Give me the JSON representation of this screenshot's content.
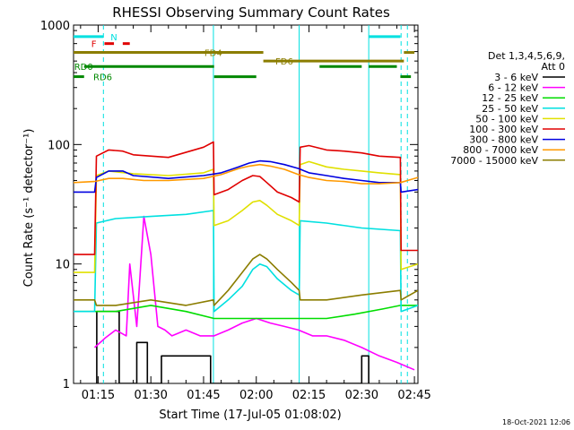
{
  "chart_data": {
    "type": "line",
    "title": "RHESSI Observing Summary Count Rates",
    "xlabel": "Start Time (17-Jul-05 01:08:02)",
    "ylabel": "Count Rate (s⁻¹ detector⁻¹)",
    "ylog": true,
    "ylim": [
      1,
      1000
    ],
    "xlim_min": [
      68,
      166
    ],
    "x_ticks": [
      {
        "min": 75,
        "label": "01:15"
      },
      {
        "min": 90,
        "label": "01:30"
      },
      {
        "min": 105,
        "label": "01:45"
      },
      {
        "min": 120,
        "label": "02:00"
      },
      {
        "min": 135,
        "label": "02:15"
      },
      {
        "min": 150,
        "label": "02:30"
      },
      {
        "min": 165,
        "label": "02:45"
      }
    ],
    "y_ticks": [
      {
        "value": 1,
        "label": "1"
      },
      {
        "value": 10,
        "label": "10"
      },
      {
        "value": 100,
        "label": "100"
      },
      {
        "value": 1000,
        "label": "1000"
      }
    ],
    "legend": {
      "placement": "right",
      "header": [
        "Det 1,3,4,5,6,9,",
        "Att 0"
      ]
    },
    "series": [
      {
        "name": "3 - 6 keV",
        "color": "#000000",
        "x": [
          74.6,
          74.6,
          81,
          81,
          86,
          86,
          89,
          89,
          93,
          93,
          107,
          107,
          150,
          150,
          152,
          152
        ],
        "y": [
          1,
          4,
          4,
          1,
          1,
          2.2,
          2.2,
          1,
          1,
          1.7,
          1.7,
          1,
          1,
          1.7,
          1.7,
          1
        ]
      },
      {
        "name": "6 - 12 keV",
        "color": "#ff00ff",
        "x": [
          74,
          77,
          80,
          83,
          84,
          86,
          88,
          90,
          92,
          94,
          96,
          100,
          104,
          108,
          112,
          116,
          120,
          124,
          128,
          132,
          136,
          140,
          145,
          150,
          155,
          160,
          165
        ],
        "y": [
          2,
          2.4,
          2.8,
          2.5,
          10,
          3,
          25,
          12,
          3,
          2.8,
          2.5,
          2.8,
          2.5,
          2.5,
          2.8,
          3.2,
          3.5,
          3.2,
          3,
          2.8,
          2.5,
          2.5,
          2.3,
          2,
          1.7,
          1.5,
          1.3
        ]
      },
      {
        "name": "12 - 25 keV",
        "color": "#00dd00",
        "x": [
          68,
          74,
          80,
          90,
          100,
          108,
          112,
          116,
          120,
          124,
          128,
          134,
          140,
          148,
          156,
          161,
          166
        ],
        "y": [
          4,
          4,
          4,
          4.5,
          4,
          3.5,
          3.5,
          3.5,
          3.5,
          3.5,
          3.5,
          3.5,
          3.5,
          3.8,
          4.2,
          4.5,
          4.5
        ]
      },
      {
        "name": "25 - 50 keV",
        "color": "#00e0e0",
        "x": [
          68,
          74,
          74.5,
          80,
          90,
          100,
          107.8,
          108,
          112,
          116,
          119,
          121,
          123,
          126,
          130,
          132.2,
          132.5,
          140,
          150,
          161,
          161.2,
          166
        ],
        "y": [
          4,
          4,
          22,
          24,
          25,
          26,
          28,
          4,
          5,
          6.5,
          9,
          10,
          9.5,
          7.5,
          6,
          5.5,
          23,
          22,
          20,
          19,
          4,
          4.5
        ]
      },
      {
        "name": "50 - 100 keV",
        "color": "#e0e000",
        "x": [
          68,
          74,
          74.5,
          78,
          85,
          95,
          105,
          107.8,
          108,
          112,
          116,
          119,
          121,
          123,
          126,
          130,
          132.2,
          132.5,
          135,
          140,
          145,
          150,
          155,
          161,
          161.2,
          166
        ],
        "y": [
          8.5,
          8.5,
          55,
          60,
          57,
          55,
          58,
          62,
          21,
          23,
          28,
          33,
          34,
          31,
          26,
          23,
          21,
          68,
          72,
          65,
          62,
          60,
          58,
          56,
          9,
          10
        ]
      },
      {
        "name": "100 - 300 keV",
        "color": "#e00000",
        "x": [
          68,
          74,
          74.5,
          78,
          82,
          85,
          95,
          105,
          107.8,
          108,
          112,
          116,
          119,
          121,
          123,
          126,
          130,
          132.2,
          132.5,
          135,
          140,
          145,
          150,
          155,
          161,
          161.2,
          166
        ],
        "y": [
          12,
          12,
          80,
          90,
          88,
          82,
          78,
          95,
          105,
          38,
          42,
          50,
          55,
          54,
          48,
          40,
          36,
          33,
          95,
          98,
          90,
          88,
          85,
          80,
          78,
          13,
          13
        ]
      },
      {
        "name": "300 - 800 keV",
        "color": "#0000e0",
        "x": [
          68,
          74,
          74.5,
          78,
          82,
          85,
          95,
          105,
          110,
          115,
          118,
          121,
          124,
          128,
          132,
          135,
          140,
          145,
          150,
          155,
          161,
          161.2,
          166
        ],
        "y": [
          40,
          40,
          53,
          60,
          60,
          55,
          52,
          55,
          58,
          65,
          70,
          73,
          72,
          68,
          63,
          58,
          55,
          52,
          50,
          48,
          48,
          40,
          42
        ]
      },
      {
        "name": "800 - 7000 keV",
        "color": "#ff9900",
        "x": [
          68,
          74,
          78,
          82,
          88,
          95,
          105,
          110,
          115,
          118,
          121,
          124,
          128,
          132,
          135,
          140,
          145,
          150,
          155,
          161,
          166
        ],
        "y": [
          48,
          49,
          52,
          52,
          50,
          50,
          52,
          56,
          63,
          66,
          68,
          66,
          62,
          56,
          53,
          50,
          49,
          47,
          47,
          48,
          53
        ]
      },
      {
        "name": "7000 - 15000 keV",
        "color": "#8b7d00",
        "x": [
          68,
          74,
          74.5,
          80,
          90,
          100,
          107.8,
          108,
          112,
          116,
          119,
          121,
          123,
          126,
          130,
          132.2,
          132.5,
          140,
          150,
          161,
          161.2,
          166
        ],
        "y": [
          5,
          5,
          4.5,
          4.5,
          5,
          4.5,
          5,
          4.5,
          6,
          8.5,
          11,
          12,
          11,
          9,
          7,
          6,
          5,
          5,
          5.5,
          6,
          5,
          6
        ]
      }
    ],
    "annotations": [
      {
        "label": "N",
        "color": "#00e0e0",
        "x1": 68,
        "x2": 76.5,
        "y": 800
      },
      {
        "label": "",
        "color": "#00e0e0",
        "x1": 152,
        "x2": 161,
        "y": 800
      },
      {
        "label": "F",
        "color": "#e00000",
        "x1": 76.8,
        "x2": 79.5,
        "y": 700
      },
      {
        "label": "",
        "color": "#e00000",
        "x1": 82,
        "x2": 84,
        "y": 700
      },
      {
        "label": "FD4",
        "color": "#8b7d00",
        "x1": 68,
        "x2": 122,
        "y": 590
      },
      {
        "label": "",
        "color": "#8b7d00",
        "x1": 162,
        "x2": 165,
        "y": 590
      },
      {
        "label": "FD6",
        "color": "#8b7d00",
        "x1": 122,
        "x2": 162,
        "y": 500
      },
      {
        "label": "RD0",
        "color": "#008800",
        "x1": 71,
        "x2": 108,
        "y": 450
      },
      {
        "label": "",
        "color": "#008800",
        "x1": 138,
        "x2": 150,
        "y": 450
      },
      {
        "label": "",
        "color": "#008800",
        "x1": 152,
        "x2": 160,
        "y": 450
      },
      {
        "label": "RD6",
        "color": "#008800",
        "x1": 68,
        "x2": 71,
        "y": 370
      },
      {
        "label": "",
        "color": "#008800",
        "x1": 108,
        "x2": 120,
        "y": 370
      },
      {
        "label": "",
        "color": "#008800",
        "x1": 161,
        "x2": 164,
        "y": 370
      }
    ],
    "vlines": [
      {
        "x": 76.5,
        "color": "#00e0e0",
        "style": "dashed"
      },
      {
        "x": 107.8,
        "color": "#00e0e0",
        "style": "solid"
      },
      {
        "x": 132.2,
        "color": "#00e0e0",
        "style": "solid"
      },
      {
        "x": 152,
        "color": "#00e0e0",
        "style": "solid"
      },
      {
        "x": 161.2,
        "color": "#00e0e0",
        "style": "dashed"
      },
      {
        "x": 163,
        "color": "#00e0e0",
        "style": "dashed"
      }
    ]
  },
  "footer": {
    "timestamp": "18-Oct-2021 12:06"
  }
}
